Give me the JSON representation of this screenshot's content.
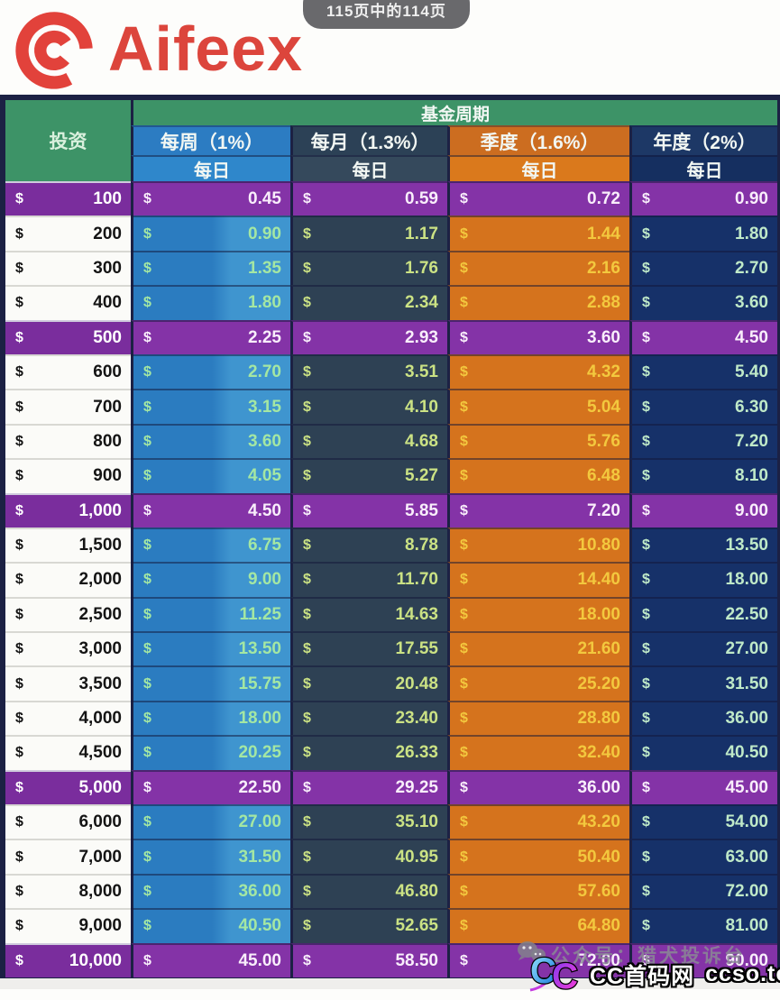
{
  "page_indicator": "115页中的114页",
  "brand": {
    "name": "Aifeex"
  },
  "table": {
    "corner_header": "投资",
    "group_header": "基金周期",
    "currency": "$",
    "columns": [
      {
        "label": "每周（1%）",
        "sub": "每日"
      },
      {
        "label": "每月（1.3%）",
        "sub": "每日"
      },
      {
        "label": "季度（1.6%）",
        "sub": "每日"
      },
      {
        "label": "年度（2%）",
        "sub": "每日"
      }
    ],
    "rows": [
      {
        "amount": "100",
        "values": [
          "0.45",
          "0.59",
          "0.72",
          "0.90"
        ],
        "highlight": true
      },
      {
        "amount": "200",
        "values": [
          "0.90",
          "1.17",
          "1.44",
          "1.80"
        ],
        "highlight": false
      },
      {
        "amount": "300",
        "values": [
          "1.35",
          "1.76",
          "2.16",
          "2.70"
        ],
        "highlight": false
      },
      {
        "amount": "400",
        "values": [
          "1.80",
          "2.34",
          "2.88",
          "3.60"
        ],
        "highlight": false
      },
      {
        "amount": "500",
        "values": [
          "2.25",
          "2.93",
          "3.60",
          "4.50"
        ],
        "highlight": true
      },
      {
        "amount": "600",
        "values": [
          "2.70",
          "3.51",
          "4.32",
          "5.40"
        ],
        "highlight": false
      },
      {
        "amount": "700",
        "values": [
          "3.15",
          "4.10",
          "5.04",
          "6.30"
        ],
        "highlight": false
      },
      {
        "amount": "800",
        "values": [
          "3.60",
          "4.68",
          "5.76",
          "7.20"
        ],
        "highlight": false
      },
      {
        "amount": "900",
        "values": [
          "4.05",
          "5.27",
          "6.48",
          "8.10"
        ],
        "highlight": false
      },
      {
        "amount": "1,000",
        "values": [
          "4.50",
          "5.85",
          "7.20",
          "9.00"
        ],
        "highlight": true
      },
      {
        "amount": "1,500",
        "values": [
          "6.75",
          "8.78",
          "10.80",
          "13.50"
        ],
        "highlight": false
      },
      {
        "amount": "2,000",
        "values": [
          "9.00",
          "11.70",
          "14.40",
          "18.00"
        ],
        "highlight": false
      },
      {
        "amount": "2,500",
        "values": [
          "11.25",
          "14.63",
          "18.00",
          "22.50"
        ],
        "highlight": false
      },
      {
        "amount": "3,000",
        "values": [
          "13.50",
          "17.55",
          "21.60",
          "27.00"
        ],
        "highlight": false
      },
      {
        "amount": "3,500",
        "values": [
          "15.75",
          "20.48",
          "25.20",
          "31.50"
        ],
        "highlight": false
      },
      {
        "amount": "4,000",
        "values": [
          "18.00",
          "23.40",
          "28.80",
          "36.00"
        ],
        "highlight": false
      },
      {
        "amount": "4,500",
        "values": [
          "20.25",
          "26.33",
          "32.40",
          "40.50"
        ],
        "highlight": false
      },
      {
        "amount": "5,000",
        "values": [
          "22.50",
          "29.25",
          "36.00",
          "45.00"
        ],
        "highlight": true
      },
      {
        "amount": "6,000",
        "values": [
          "27.00",
          "35.10",
          "43.20",
          "54.00"
        ],
        "highlight": false
      },
      {
        "amount": "7,000",
        "values": [
          "31.50",
          "40.95",
          "50.40",
          "63.00"
        ],
        "highlight": false
      },
      {
        "amount": "8,000",
        "values": [
          "36.00",
          "46.80",
          "57.60",
          "72.00"
        ],
        "highlight": false
      },
      {
        "amount": "9,000",
        "values": [
          "40.50",
          "52.65",
          "64.80",
          "81.00"
        ],
        "highlight": false
      },
      {
        "amount": "10,000",
        "values": [
          "45.00",
          "58.50",
          "72.00",
          "90.00"
        ],
        "highlight": true
      }
    ]
  },
  "watermarks": {
    "account_text": "公众号：猎犬投诉台",
    "cc_logo": "CC",
    "cc_site_name": "CC首码网",
    "cc_site_url": "ccso.top"
  },
  "colors": {
    "brand_red": "#dc453c",
    "header_green": "#3d9367",
    "weekly_blue": "#2b7cc0",
    "monthly_slate": "#2e4154",
    "quarterly_orange": "#d5731d",
    "yearly_navy": "#163169",
    "highlight_purple": "#8433a7"
  }
}
